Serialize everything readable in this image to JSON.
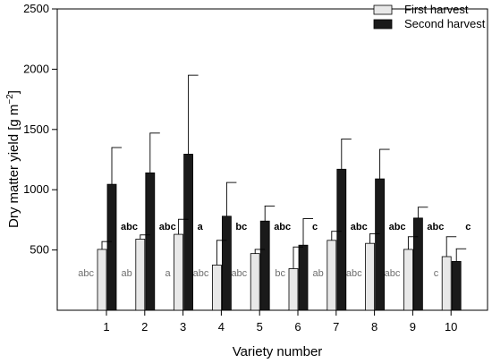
{
  "chart_data": {
    "type": "bar",
    "title": "",
    "xlabel": "Variety number",
    "ylabel_main": "Dry matter yield [g m",
    "ylabel_exp": "−2",
    "ylabel_close": "]",
    "ylim": [
      0,
      2500
    ],
    "yticks": [
      500,
      1000,
      1500,
      2000,
      2500
    ],
    "categories": [
      "1",
      "2",
      "3",
      "4",
      "5",
      "6",
      "7",
      "8",
      "9",
      "10"
    ],
    "legend_position": "top-right",
    "grid": false,
    "series": [
      {
        "name": "First harvest",
        "color": "#e8e8e8",
        "values": [
          505,
          590,
          630,
          375,
          470,
          345,
          580,
          555,
          505,
          445
        ],
        "errors": [
          65,
          35,
          125,
          205,
          35,
          180,
          75,
          80,
          105,
          165
        ],
        "letters": [
          "abc",
          "ab",
          "a",
          "abc",
          "abc",
          "bc",
          "ab",
          "abc",
          "abc",
          "c"
        ]
      },
      {
        "name": "Second harvest",
        "color": "#1a1a1a",
        "values": [
          1045,
          1140,
          1295,
          780,
          740,
          540,
          1170,
          1090,
          765,
          405
        ],
        "errors": [
          305,
          330,
          655,
          280,
          125,
          220,
          250,
          245,
          90,
          105
        ],
        "letters": [
          "abc",
          "abc",
          "a",
          "bc",
          "abc",
          "c",
          "abc",
          "abc",
          "abc",
          "c"
        ]
      }
    ]
  }
}
